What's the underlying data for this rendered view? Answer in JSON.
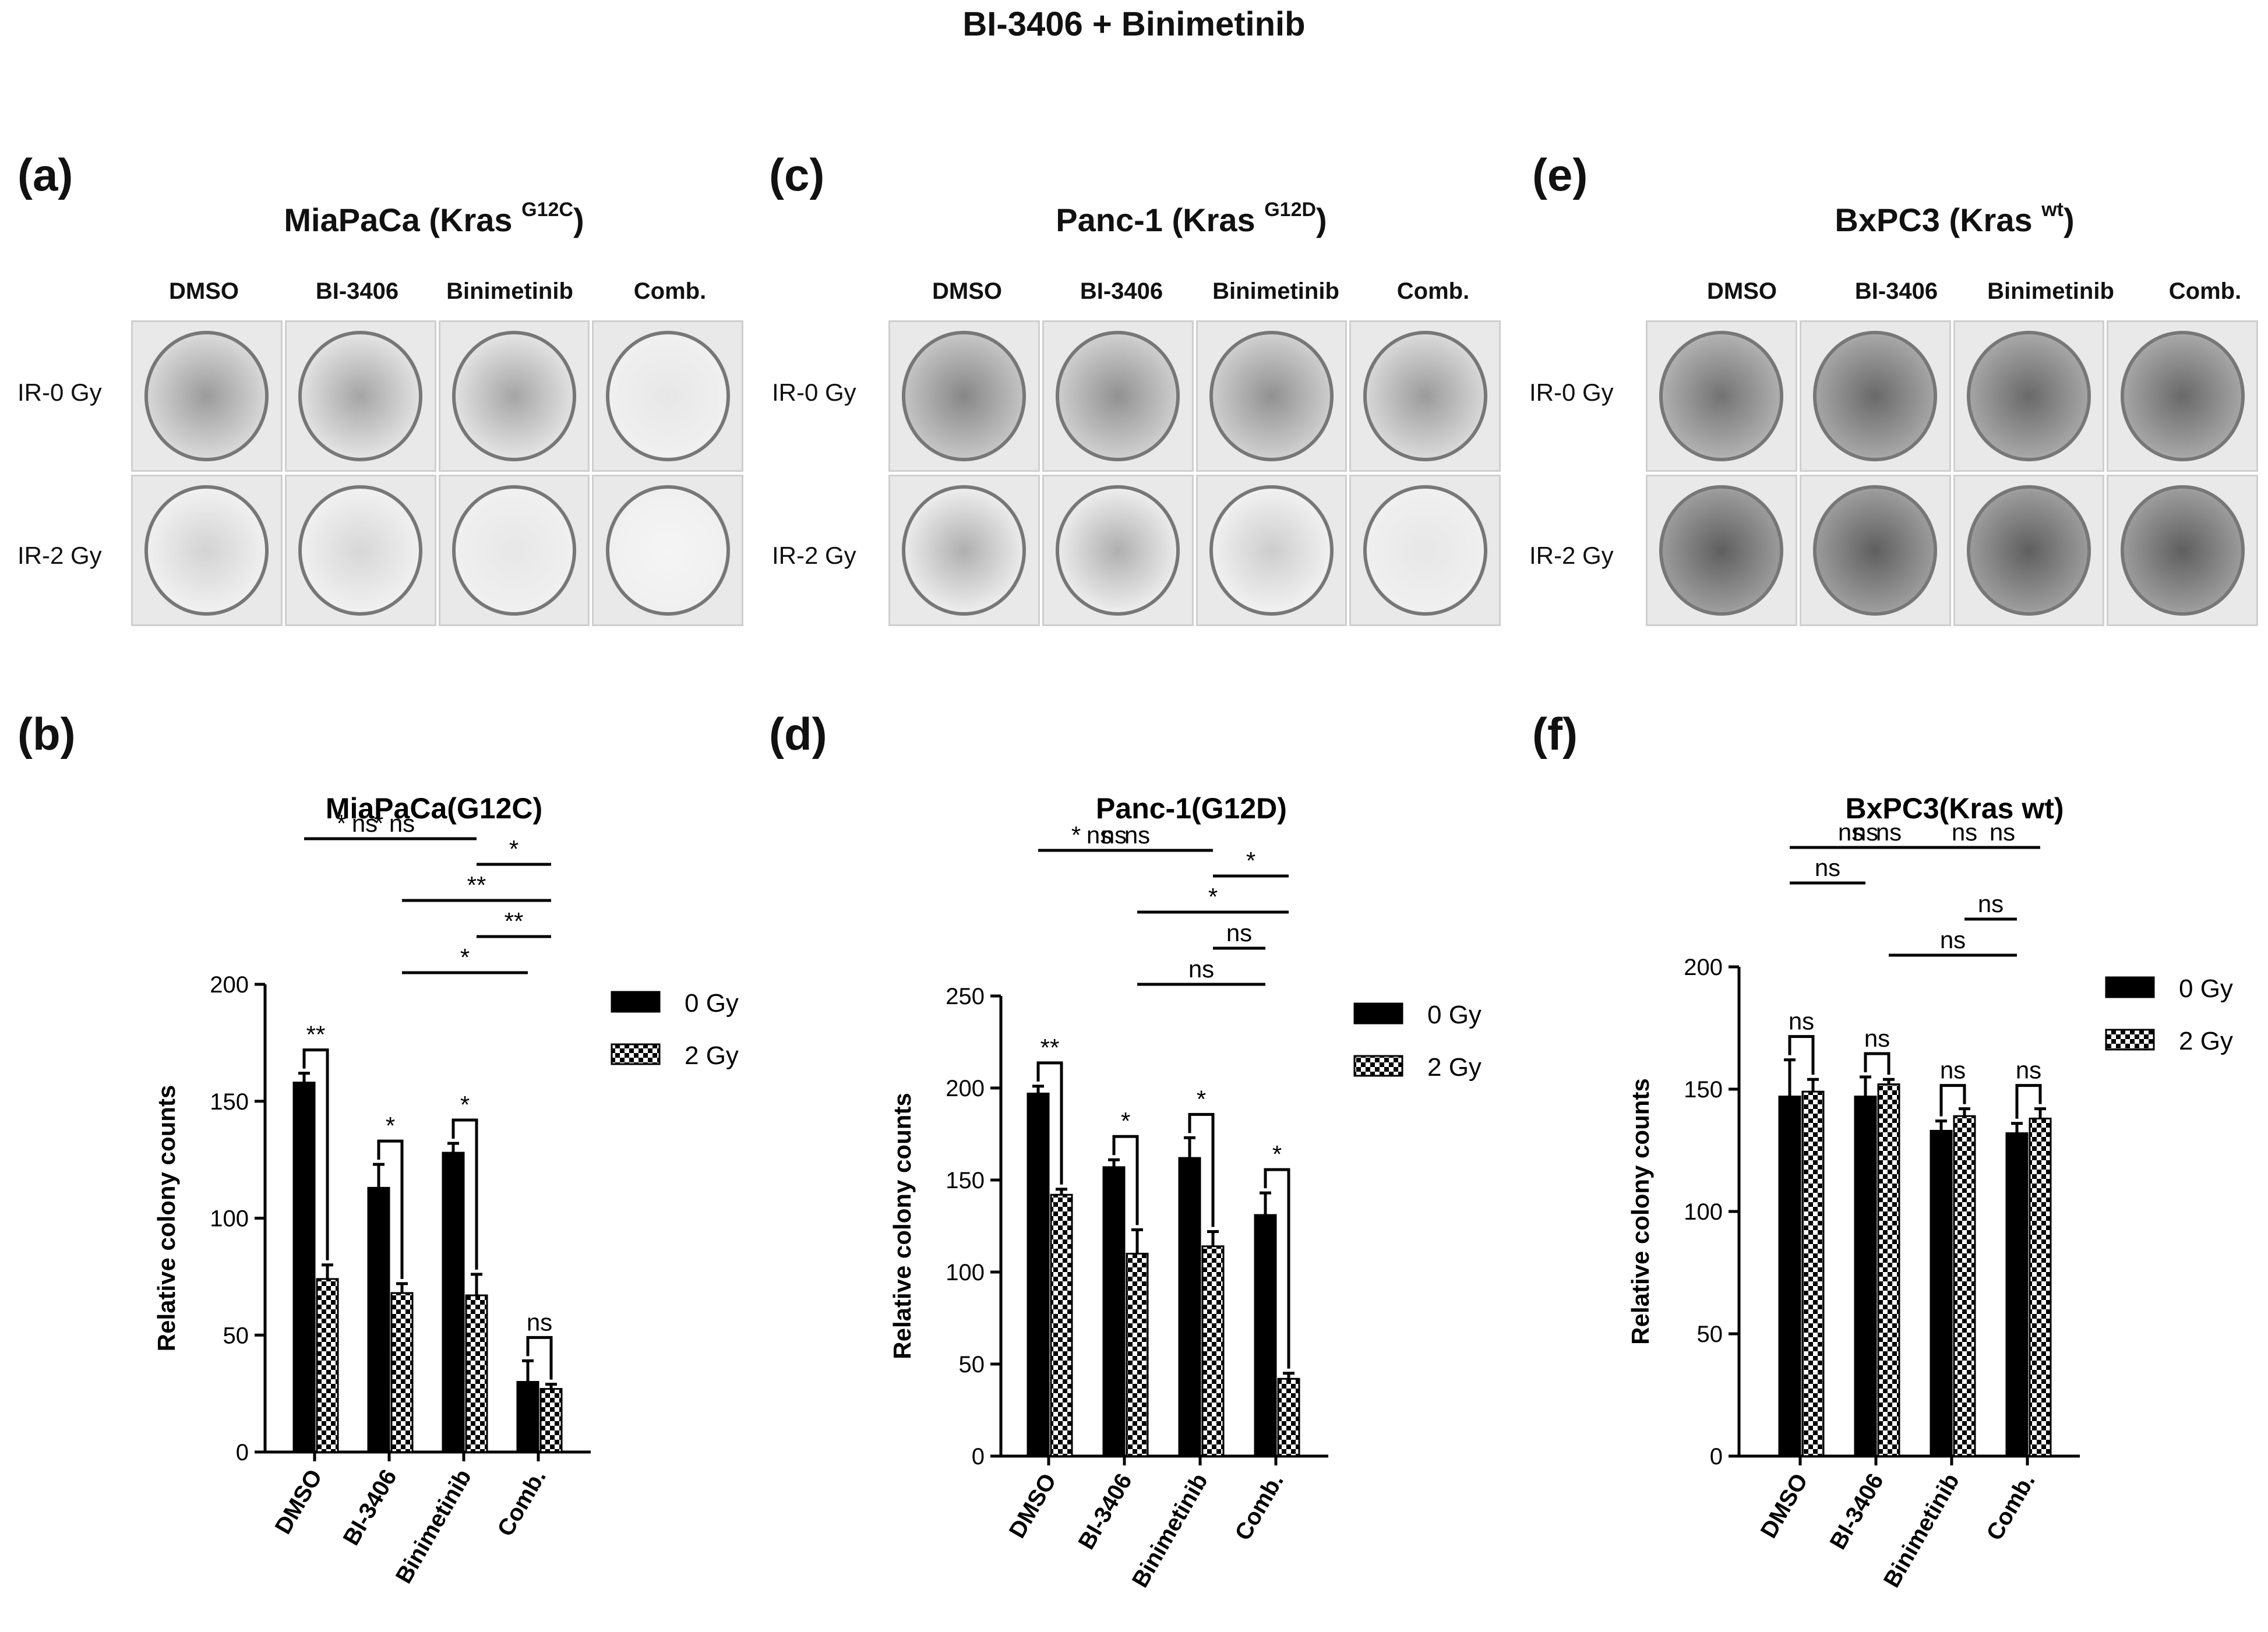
{
  "figure_title": "BI-3406  + Binimetinib",
  "panels": {
    "a": "(a)",
    "b": "(b)",
    "c": "(c)",
    "d": "(d)",
    "e": "(e)",
    "f": "(f)"
  },
  "blots": [
    {
      "title_main": "MiaPaCa (Kras ",
      "title_sup": "G12C",
      "title_end": ")",
      "columns": [
        "DMSO",
        "BI-3406",
        "Binimetinib",
        "Comb."
      ],
      "rows": [
        "IR-0 Gy",
        "IR-2 Gy"
      ]
    },
    {
      "title_main": "Panc-1 (Kras ",
      "title_sup": "G12D",
      "title_end": ")",
      "columns": [
        "DMSO",
        "BI-3406",
        "Binimetinib",
        "Comb."
      ],
      "rows": [
        "IR-0 Gy",
        "IR-2 Gy"
      ]
    },
    {
      "title_main": "BxPC3 (Kras ",
      "title_sup": "wt",
      "title_end": ")",
      "columns": [
        "DMSO",
        "BI-3406",
        "Binimetinib",
        "Comb."
      ],
      "rows": [
        "IR-0 Gy",
        "IR-2 Gy"
      ]
    }
  ],
  "colors": {
    "bar_0gy": "#000000",
    "bar_2gy_pattern": "#000000",
    "background": "#ffffff"
  },
  "chart_data": [
    {
      "type": "bar",
      "title": "MiaPaCa(G12C)",
      "ylabel": "Relative colony counts",
      "categories": [
        "DMSO",
        "BI-3406",
        "Binimetinib",
        "Comb."
      ],
      "ylim": [
        0,
        200
      ],
      "yticks": [
        0,
        50,
        100,
        150,
        200
      ],
      "series": [
        {
          "name": "0 Gy",
          "values": [
            158,
            113,
            128,
            30
          ],
          "errors": [
            4,
            10,
            4,
            9
          ]
        },
        {
          "name": "2 Gy",
          "values": [
            74,
            68,
            67,
            27
          ],
          "errors": [
            6,
            4,
            9,
            2
          ]
        }
      ],
      "annotations": [
        {
          "label": "**",
          "from": [
            0,
            0
          ],
          "to": [
            0,
            1
          ],
          "bracket": true
        },
        {
          "label": "*",
          "from": [
            1,
            0
          ],
          "to": [
            1,
            1
          ],
          "bracket": true
        },
        {
          "label": "*",
          "from": [
            2,
            0
          ],
          "to": [
            2,
            1
          ],
          "bracket": true
        },
        {
          "label": "ns",
          "from": [
            3,
            0
          ],
          "to": [
            3,
            1
          ],
          "bracket": true
        },
        {
          "label": "*",
          "from": [
            1,
            1
          ],
          "to": [
            3,
            0
          ]
        },
        {
          "label": "**",
          "from": [
            2,
            1
          ],
          "to": [
            3,
            1
          ]
        },
        {
          "label": "**",
          "from": [
            1,
            1
          ],
          "to": [
            3,
            1
          ]
        },
        {
          "label": "*",
          "from": [
            2,
            1
          ],
          "to": [
            3,
            1
          ]
        },
        {
          "label": "*",
          "from": [
            0,
            0
          ],
          "to": [
            1,
            0
          ]
        },
        {
          "label": "*",
          "from": [
            0,
            0
          ],
          "to": [
            2,
            0
          ]
        },
        {
          "label": "ns",
          "from": [
            0,
            1
          ],
          "to": [
            1,
            1
          ]
        },
        {
          "label": "ns",
          "from": [
            0,
            1
          ],
          "to": [
            2,
            1
          ]
        }
      ]
    },
    {
      "type": "bar",
      "title": "Panc-1(G12D)",
      "ylabel": "Relative colony counts",
      "categories": [
        "DMSO",
        "BI-3406",
        "Binimetinib",
        "Comb."
      ],
      "ylim": [
        0,
        250
      ],
      "yticks": [
        0,
        50,
        100,
        150,
        200,
        250
      ],
      "series": [
        {
          "name": "0 Gy",
          "values": [
            197,
            157,
            162,
            131
          ],
          "errors": [
            4,
            4,
            11,
            12
          ]
        },
        {
          "name": "2 Gy",
          "values": [
            142,
            110,
            114,
            42
          ],
          "errors": [
            3,
            13,
            8,
            3
          ]
        }
      ],
      "annotations": [
        {
          "label": "**",
          "from": [
            0,
            0
          ],
          "to": [
            0,
            1
          ],
          "bracket": true
        },
        {
          "label": "*",
          "from": [
            1,
            0
          ],
          "to": [
            1,
            1
          ],
          "bracket": true
        },
        {
          "label": "*",
          "from": [
            2,
            0
          ],
          "to": [
            2,
            1
          ],
          "bracket": true
        },
        {
          "label": "*",
          "from": [
            3,
            0
          ],
          "to": [
            3,
            1
          ],
          "bracket": true
        },
        {
          "label": "ns",
          "from": [
            1,
            1
          ],
          "to": [
            3,
            0
          ]
        },
        {
          "label": "ns",
          "from": [
            2,
            1
          ],
          "to": [
            3,
            0
          ]
        },
        {
          "label": "*",
          "from": [
            1,
            1
          ],
          "to": [
            3,
            1
          ]
        },
        {
          "label": "*",
          "from": [
            2,
            1
          ],
          "to": [
            3,
            1
          ]
        },
        {
          "label": "*",
          "from": [
            0,
            0
          ],
          "to": [
            1,
            0
          ]
        },
        {
          "label": "ns",
          "from": [
            0,
            0
          ],
          "to": [
            2,
            0
          ]
        },
        {
          "label": "ns",
          "from": [
            0,
            1
          ],
          "to": [
            1,
            1
          ]
        },
        {
          "label": "ns",
          "from": [
            0,
            1
          ],
          "to": [
            2,
            1
          ]
        }
      ]
    },
    {
      "type": "bar",
      "title": "BxPC3(Kras wt)",
      "ylabel": "Relative colony counts",
      "categories": [
        "DMSO",
        "BI-3406",
        "Binimetinib",
        "Comb."
      ],
      "ylim": [
        0,
        200
      ],
      "yticks": [
        0,
        50,
        100,
        150,
        200
      ],
      "series": [
        {
          "name": "0 Gy",
          "values": [
            147,
            147,
            133,
            132
          ],
          "errors": [
            15,
            8,
            4,
            4
          ]
        },
        {
          "name": "2 Gy",
          "values": [
            149,
            152,
            139,
            138
          ],
          "errors": [
            5,
            2,
            3,
            4
          ]
        }
      ],
      "annotations": [
        {
          "label": "ns",
          "from": [
            0,
            0
          ],
          "to": [
            0,
            1
          ],
          "bracket": true
        },
        {
          "label": "ns",
          "from": [
            1,
            0
          ],
          "to": [
            1,
            1
          ],
          "bracket": true
        },
        {
          "label": "ns",
          "from": [
            2,
            0
          ],
          "to": [
            2,
            1
          ],
          "bracket": true
        },
        {
          "label": "ns",
          "from": [
            3,
            0
          ],
          "to": [
            3,
            1
          ],
          "bracket": true
        },
        {
          "label": "ns",
          "from": [
            1,
            1
          ],
          "to": [
            3,
            0
          ]
        },
        {
          "label": "ns",
          "from": [
            2,
            1
          ],
          "to": [
            3,
            0
          ]
        },
        {
          "label": "ns",
          "from": [
            0,
            0
          ],
          "to": [
            1,
            0
          ]
        },
        {
          "label": "ns",
          "from": [
            1,
            1
          ],
          "to": [
            3,
            1
          ]
        },
        {
          "label": "ns",
          "from": [
            0,
            0
          ],
          "to": [
            2,
            0
          ]
        },
        {
          "label": "ns",
          "from": [
            2,
            1
          ],
          "to": [
            3,
            1
          ]
        },
        {
          "label": "ns",
          "from": [
            0,
            1
          ],
          "to": [
            1,
            1
          ]
        },
        {
          "label": "ns",
          "from": [
            0,
            1
          ],
          "to": [
            2,
            1
          ]
        }
      ]
    }
  ]
}
